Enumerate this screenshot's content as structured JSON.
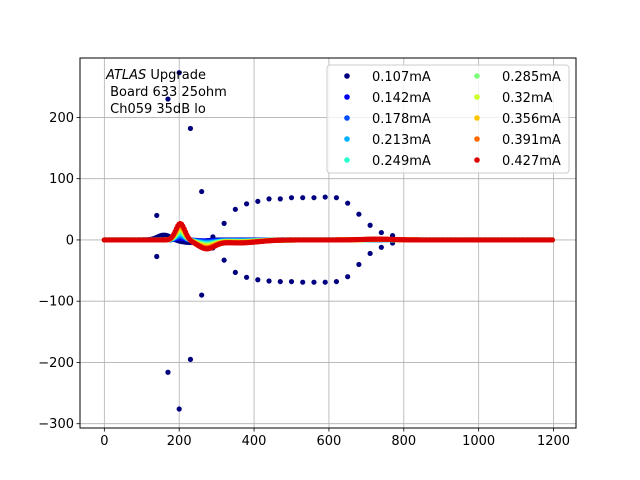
{
  "chart_data": {
    "type": "scatter",
    "title": "",
    "xlabel": "",
    "ylabel": "",
    "annotation": {
      "italic": "ATLAS",
      "line1_rest": " Upgrade",
      "line2": " Board 633 25ohm",
      "line3": " Ch059 35dB lo"
    },
    "xlim": [
      -65,
      1260
    ],
    "ylim": [
      -307,
      297
    ],
    "xticks": [
      0,
      200,
      400,
      600,
      800,
      1000,
      1200
    ],
    "xtick_labels": [
      "0",
      "200",
      "400",
      "600",
      "800",
      "1000",
      "1200"
    ],
    "yticks": [
      -300,
      -200,
      -100,
      0,
      100,
      200
    ],
    "ytick_labels": [
      "−300",
      "−200",
      "−100",
      "0",
      "100",
      "200"
    ],
    "grid": true,
    "legend_position": "top-right",
    "legend_columns": 2,
    "series": [
      {
        "name": "0.107mA",
        "color": "#00007f",
        "amplitude": 0,
        "scatter_points": [
          [
            140,
            40
          ],
          [
            140,
            -27
          ],
          [
            170,
            230
          ],
          [
            170,
            -216
          ],
          [
            200,
            273
          ],
          [
            200,
            -276
          ],
          [
            230,
            182
          ],
          [
            230,
            -195
          ],
          [
            260,
            79
          ],
          [
            260,
            -90
          ],
          [
            290,
            5
          ],
          [
            290,
            -13
          ],
          [
            320,
            27
          ],
          [
            320,
            -33
          ],
          [
            350,
            50
          ],
          [
            350,
            -53
          ],
          [
            380,
            59
          ],
          [
            380,
            -61
          ],
          [
            410,
            63
          ],
          [
            410,
            -65
          ],
          [
            440,
            67
          ],
          [
            440,
            -67
          ],
          [
            470,
            67
          ],
          [
            470,
            -68
          ],
          [
            500,
            69
          ],
          [
            500,
            -68
          ],
          [
            530,
            69
          ],
          [
            530,
            -69
          ],
          [
            560,
            69
          ],
          [
            560,
            -69
          ],
          [
            590,
            70
          ],
          [
            590,
            -69
          ],
          [
            620,
            69
          ],
          [
            620,
            -68
          ],
          [
            650,
            60
          ],
          [
            650,
            -60
          ],
          [
            680,
            42
          ],
          [
            680,
            -40
          ],
          [
            710,
            24
          ],
          [
            710,
            -22
          ],
          [
            740,
            12
          ],
          [
            740,
            -12
          ],
          [
            770,
            7
          ],
          [
            770,
            -5
          ]
        ]
      },
      {
        "name": "0.142mA",
        "color": "#0000f1",
        "amplitude": 3
      },
      {
        "name": "0.178mA",
        "color": "#004dff",
        "amplitude": 6
      },
      {
        "name": "0.213mA",
        "color": "#00b1ff",
        "amplitude": 9
      },
      {
        "name": "0.249mA",
        "color": "#29ffce",
        "amplitude": 12
      },
      {
        "name": "0.285mA",
        "color": "#7dff7a",
        "amplitude": 15
      },
      {
        "name": "0.32mA",
        "color": "#ceff29",
        "amplitude": 18
      },
      {
        "name": "0.356mA",
        "color": "#ffc400",
        "amplitude": 21
      },
      {
        "name": "0.391mA",
        "color": "#ff6800",
        "amplitude": 24
      },
      {
        "name": "0.427mA",
        "color": "#dd0000",
        "amplitude": 27
      }
    ]
  }
}
